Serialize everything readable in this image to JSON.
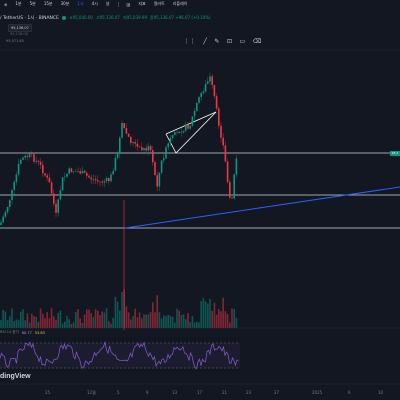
{
  "toolbar": {
    "timeframes": [
      {
        "label": "1분",
        "active": false
      },
      {
        "label": "5분",
        "active": false
      },
      {
        "label": "15분",
        "active": false
      },
      {
        "label": "30분",
        "active": false
      },
      {
        "label": "1시",
        "active": true
      },
      {
        "label": "4시",
        "active": false
      },
      {
        "label": "날",
        "active": false
      }
    ],
    "indicators_label": "지표",
    "alert_label": "얼러트",
    "replay_label": "리플레이"
  },
  "symbol": {
    "name": "/ TetherUS · 1시 · BINANCE",
    "ohlc": [
      "시95,040.00",
      "고95,136.07",
      "저95,039.99",
      "종95,136.07 +96.07 (+0.10%)"
    ]
  },
  "order": {
    "sell_price": "95,136.07",
    "buy_price": "95,136.08",
    "secondary": "95,071.65"
  },
  "rsi": {
    "label": "RSI 14 종가",
    "value1": "60.77",
    "value2": "53.83"
  },
  "price_tag": "95,1",
  "logo": "dingView",
  "xaxis_ticks": [
    {
      "label": "25",
      "pos": 45
    },
    {
      "label": "12월",
      "pos": 87
    },
    {
      "label": "5",
      "pos": 117
    },
    {
      "label": "9",
      "pos": 146
    },
    {
      "label": "13",
      "pos": 172
    },
    {
      "label": "17",
      "pos": 197
    },
    {
      "label": "21",
      "pos": 222
    },
    {
      "label": "23",
      "pos": 246
    },
    {
      "label": "27",
      "pos": 274
    },
    {
      "label": "2025",
      "pos": 312
    },
    {
      "label": "6",
      "pos": 348
    },
    {
      "label": "10",
      "pos": 378
    }
  ],
  "colors": {
    "up": "#089981",
    "down": "#f23645",
    "trendline": "#2962ff",
    "rsi": "#7e57c2"
  },
  "icons": [
    "cursor-icon",
    "trendline-icon",
    "brush-icon",
    "lock-icon",
    "hide-icon",
    "trash-icon"
  ]
}
